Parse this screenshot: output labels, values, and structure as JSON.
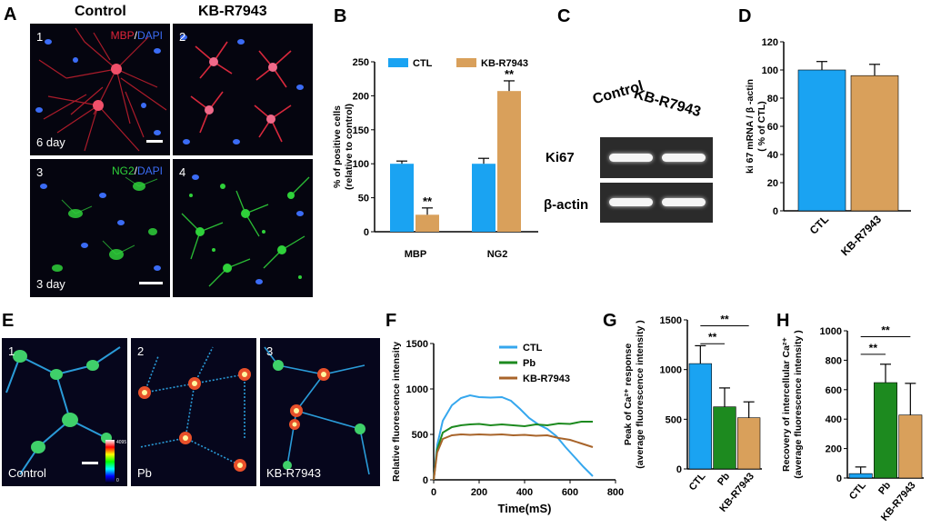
{
  "panel_letters": {
    "A": "A",
    "B": "B",
    "C": "C",
    "D": "D",
    "E": "E",
    "F": "F",
    "G": "G",
    "H": "H"
  },
  "panel_a": {
    "col_headers": [
      "Control",
      "KB-R7943"
    ],
    "images": [
      {
        "num": "1",
        "stain_a": "MBP",
        "stain_sep": "/",
        "stain_b": "DAPI",
        "day": "6 day"
      },
      {
        "num": "2"
      },
      {
        "num": "3",
        "stain_a": "NG2",
        "stain_sep": "/",
        "stain_b": "DAPI",
        "day": "3 day"
      },
      {
        "num": "4"
      }
    ],
    "colors": {
      "mbp": "#e0243a",
      "ng2": "#2fd13a",
      "dapi": "#3b6cf5"
    }
  },
  "panel_c": {
    "col_labels": [
      "Control",
      "KB-R7943"
    ],
    "row_labels": [
      "Ki67",
      "β-actin"
    ]
  },
  "panel_e": {
    "images": [
      {
        "num": "1",
        "label": "Control"
      },
      {
        "num": "2",
        "label": "Pb"
      },
      {
        "num": "3",
        "label": "KB-R7943"
      }
    ],
    "colorbar_max": "4095",
    "colorbar_min": "0"
  },
  "chart_data": [
    {
      "id": "B",
      "type": "bar",
      "categories": [
        "MBP",
        "NG2"
      ],
      "series": [
        {
          "name": "CTL",
          "values": [
            100,
            100
          ],
          "errors": [
            4,
            8
          ],
          "color": "#1aa3f2"
        },
        {
          "name": "KB-R7943",
          "values": [
            25,
            207
          ],
          "errors": [
            10,
            15
          ],
          "color": "#d9a05b"
        }
      ],
      "ylabel": "% of positive cells (relative to control)",
      "ylabel_lines": [
        "% of positive cells",
        "(relative to control)"
      ],
      "ylim": [
        0,
        250
      ],
      "yticks": [
        "0",
        "50",
        "100",
        "150",
        "200",
        "250"
      ],
      "annotations": [
        "**",
        "**"
      ],
      "legend_placement": "top"
    },
    {
      "id": "D",
      "type": "bar",
      "categories": [
        "CTL",
        "KB-R7943"
      ],
      "values": [
        100,
        96
      ],
      "errors": [
        6,
        8
      ],
      "colors": [
        "#1aa3f2",
        "#d9a05b"
      ],
      "ylabel": "ki 67 mRNA / β -actin ( % of CTL)",
      "ylabel_lines": [
        "ki 67 mRNA / β -actin",
        "( % of CTL)"
      ],
      "ylim": [
        0,
        120
      ],
      "yticks": [
        "0",
        "20",
        "40",
        "60",
        "80",
        "100",
        "120"
      ]
    },
    {
      "id": "F",
      "type": "line",
      "xlabel": "Time(mS)",
      "ylabel": "Relative fluorescence  intensity",
      "xlim": [
        0,
        800
      ],
      "ylim": [
        0,
        1500
      ],
      "xticks": [
        "0",
        "200",
        "400",
        "600",
        "800"
      ],
      "yticks": [
        "0",
        "500",
        "1000",
        "1500"
      ],
      "series": [
        {
          "name": "CTL",
          "color": "#35a7ee",
          "x": [
            0,
            15,
            40,
            80,
            120,
            160,
            200,
            250,
            300,
            340,
            380,
            420,
            460,
            500,
            540,
            580,
            620,
            660,
            700
          ],
          "y": [
            0,
            380,
            650,
            820,
            900,
            930,
            910,
            905,
            910,
            870,
            780,
            680,
            610,
            560,
            480,
            360,
            250,
            140,
            40
          ]
        },
        {
          "name": "Pb",
          "color": "#1d8a1f",
          "x": [
            0,
            15,
            40,
            80,
            120,
            160,
            200,
            250,
            300,
            350,
            400,
            450,
            500,
            550,
            600,
            650,
            700
          ],
          "y": [
            0,
            330,
            520,
            580,
            600,
            610,
            615,
            600,
            610,
            600,
            590,
            610,
            600,
            620,
            615,
            640,
            640
          ]
        },
        {
          "name": "KB-R7943",
          "color": "#a8642a",
          "x": [
            0,
            15,
            40,
            80,
            120,
            160,
            200,
            250,
            300,
            350,
            400,
            450,
            500,
            550,
            600,
            650,
            700
          ],
          "y": [
            0,
            300,
            450,
            490,
            500,
            495,
            500,
            495,
            500,
            490,
            495,
            485,
            490,
            460,
            440,
            400,
            360
          ]
        }
      ],
      "legend_placement": "top-right"
    },
    {
      "id": "G",
      "type": "bar",
      "categories": [
        "CTL",
        "Pb",
        "KB-R7943"
      ],
      "values": [
        1060,
        625,
        515
      ],
      "errors": [
        180,
        190,
        160
      ],
      "colors": [
        "#1aa3f2",
        "#1d8a1f",
        "#d9a05b"
      ],
      "ylabel": "Peak of Ca²⁺ response (average fluorescence  intensity )",
      "ylabel_lines": [
        "Peak of Ca²⁺ response",
        "(average fluorescence  intensity )"
      ],
      "ylim": [
        0,
        1500
      ],
      "yticks": [
        "0",
        "500",
        "1000",
        "1500"
      ],
      "annotations": [
        "**",
        "**"
      ]
    },
    {
      "id": "H",
      "type": "bar",
      "categories": [
        "CTL",
        "Pb",
        "KB-R7943"
      ],
      "values": [
        30,
        648,
        428
      ],
      "errors": [
        45,
        125,
        215
      ],
      "colors": [
        "#1aa3f2",
        "#1d8a1f",
        "#d9a05b"
      ],
      "ylabel": "Recovery of intercellular Ca²⁺ (average fluorescence  intensity )",
      "ylabel_lines": [
        "Recovery of intercellular Ca²⁺",
        "(average fluorescence  intensity )"
      ],
      "ylim": [
        0,
        1000
      ],
      "yticks": [
        "0",
        "200",
        "400",
        "600",
        "800",
        "1000"
      ],
      "annotations": [
        "**",
        "**"
      ]
    }
  ]
}
